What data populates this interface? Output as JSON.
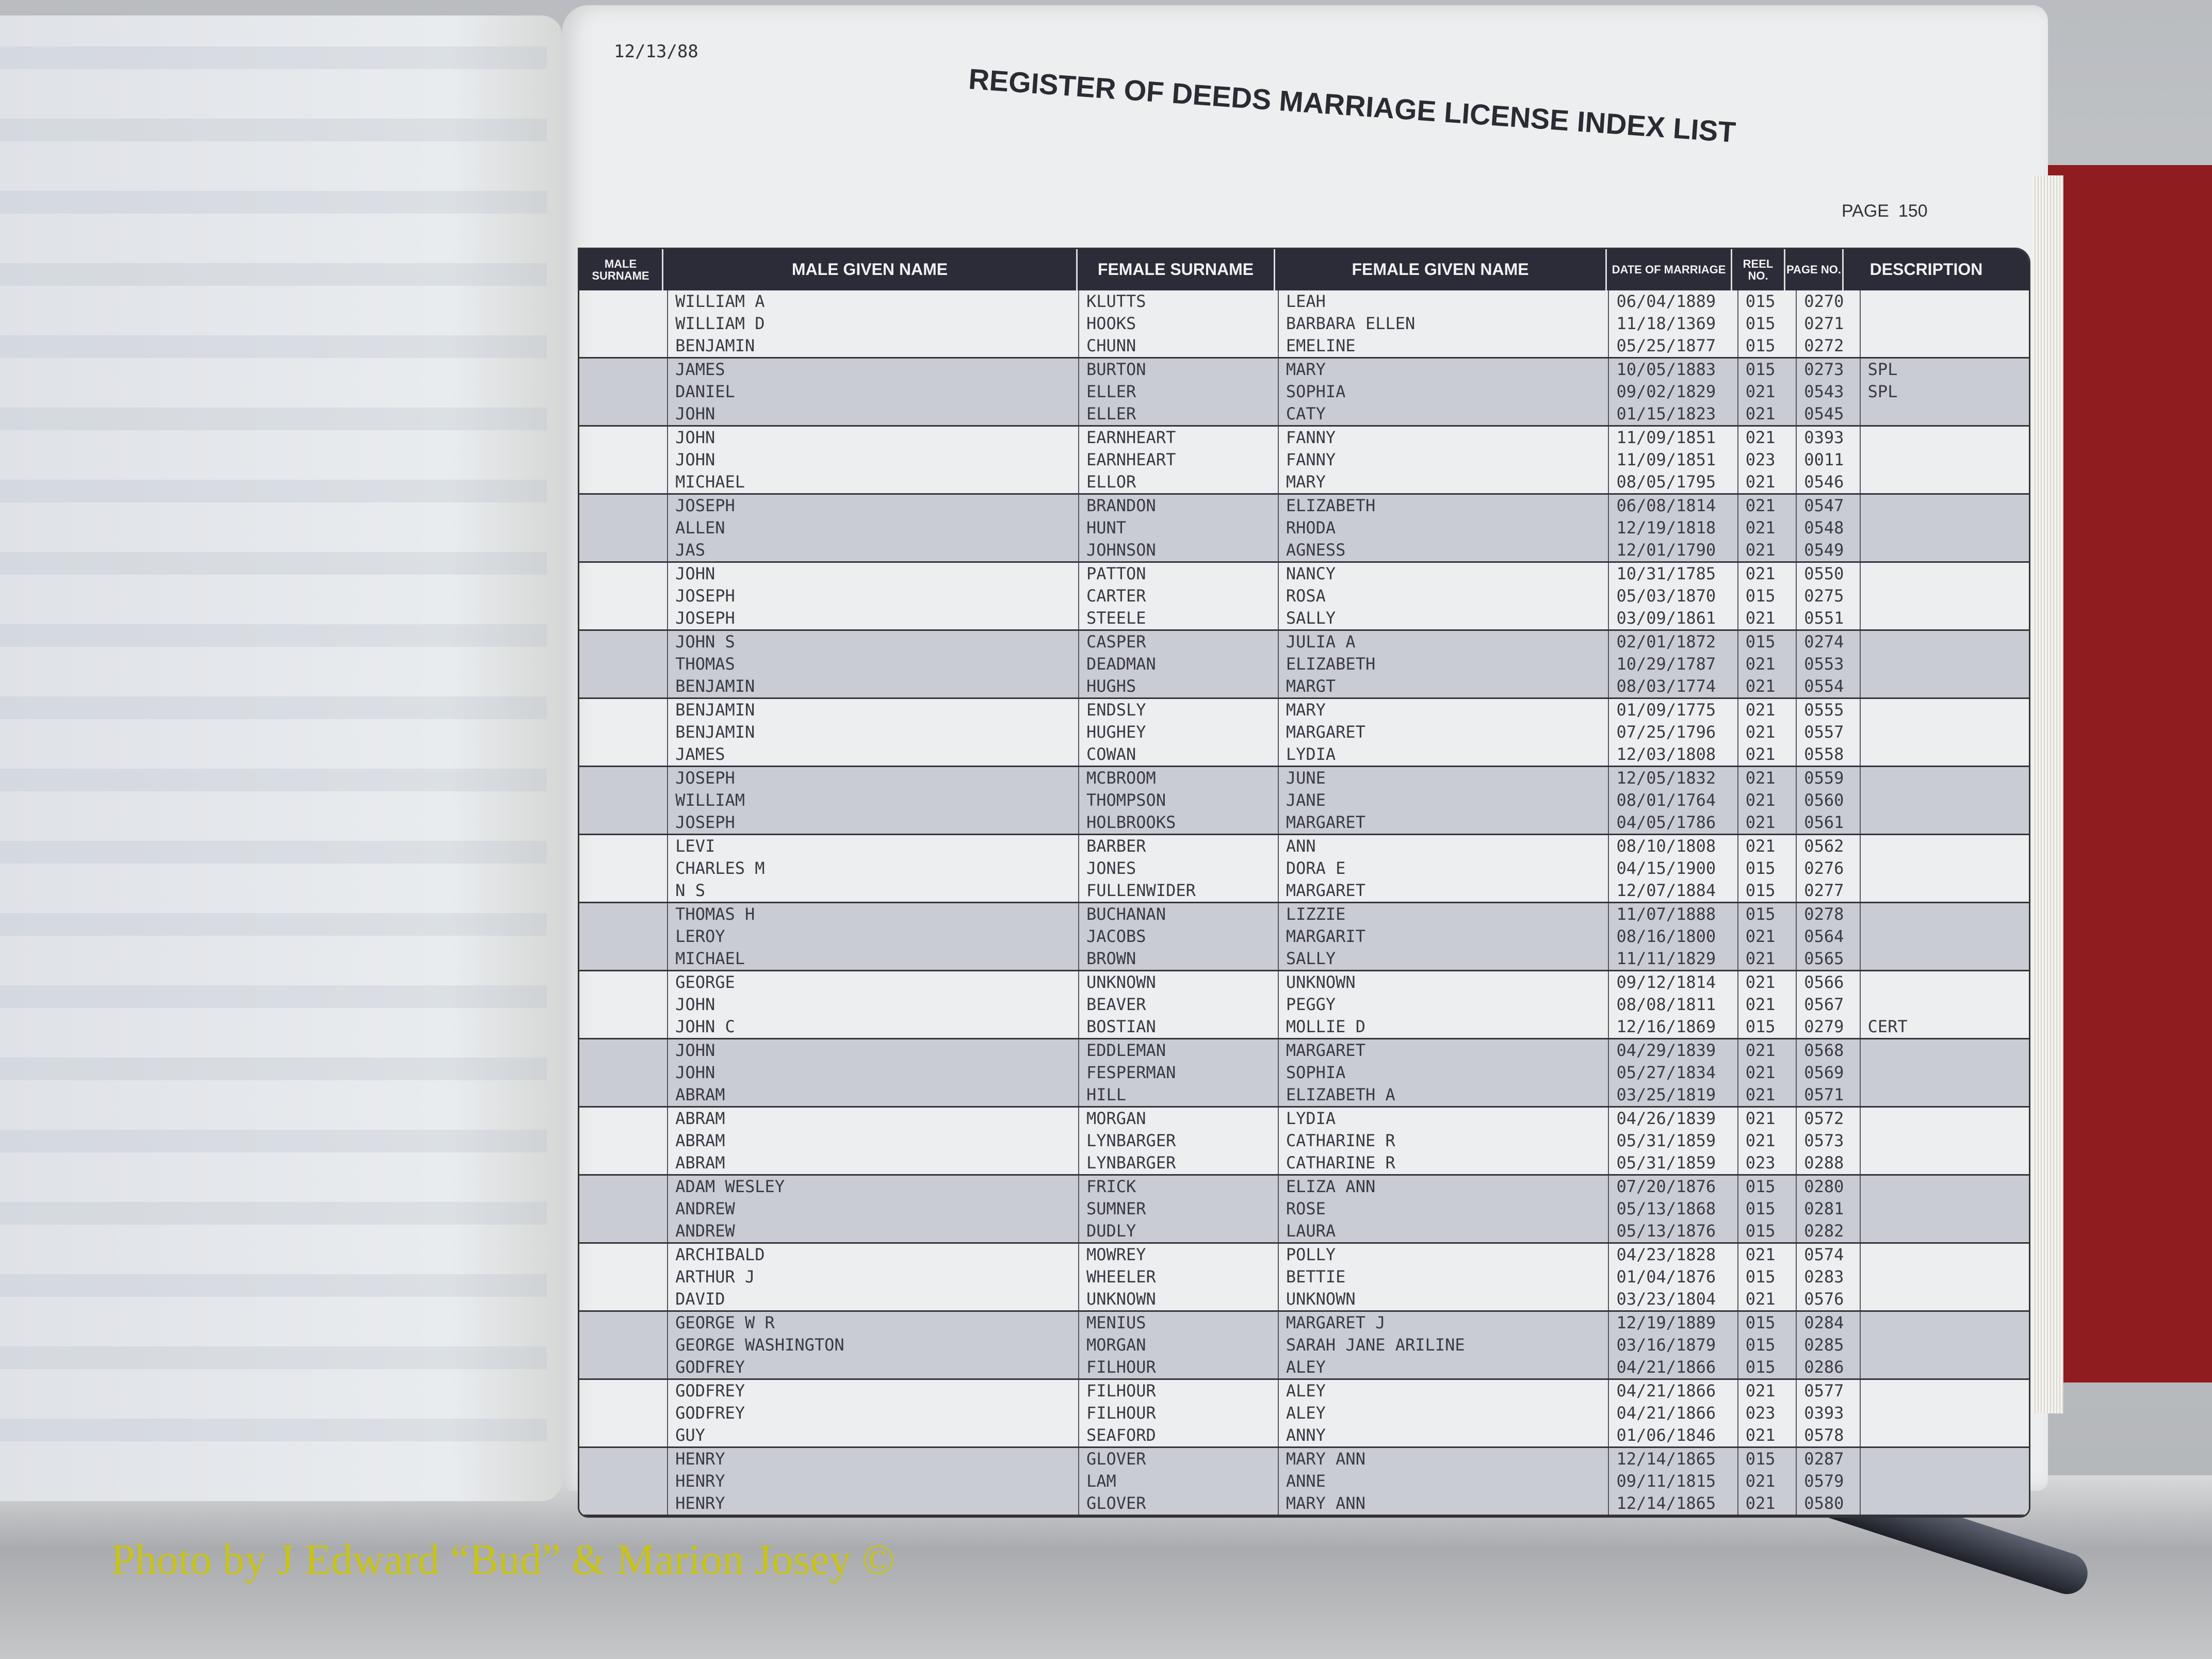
{
  "document": {
    "print_date": "12/13/88",
    "title": "REGISTER OF DEEDS MARRIAGE LICENSE INDEX LIST",
    "page_label": "PAGE",
    "page_number": "150"
  },
  "table": {
    "headers": [
      "MALE SURNAME",
      "MALE GIVEN NAME",
      "FEMALE SURNAME",
      "FEMALE GIVEN NAME",
      "DATE OF MARRIAGE",
      "REEL NO.",
      "PAGE NO.",
      "DESCRIPTION"
    ],
    "rows": [
      [
        "",
        "WILLIAM A",
        "KLUTTS",
        "LEAH",
        "06/04/1889",
        "015",
        "0270",
        ""
      ],
      [
        "",
        "WILLIAM D",
        "HOOKS",
        "BARBARA ELLEN",
        "11/18/1369",
        "015",
        "0271",
        ""
      ],
      [
        "",
        "BENJAMIN",
        "CHUNN",
        "EMELINE",
        "05/25/1877",
        "015",
        "0272",
        ""
      ],
      [
        "",
        "JAMES",
        "BURTON",
        "MARY",
        "10/05/1883",
        "015",
        "0273",
        "SPL"
      ],
      [
        "",
        "DANIEL",
        "ELLER",
        "SOPHIA",
        "09/02/1829",
        "021",
        "0543",
        "SPL"
      ],
      [
        "",
        "JOHN",
        "ELLER",
        "CATY",
        "01/15/1823",
        "021",
        "0545",
        ""
      ],
      [
        "",
        "JOHN",
        "EARNHEART",
        "FANNY",
        "11/09/1851",
        "021",
        "0393",
        ""
      ],
      [
        "",
        "JOHN",
        "EARNHEART",
        "FANNY",
        "11/09/1851",
        "023",
        "0011",
        ""
      ],
      [
        "",
        "MICHAEL",
        "ELLOR",
        "MARY",
        "08/05/1795",
        "021",
        "0546",
        ""
      ],
      [
        "",
        "JOSEPH",
        "BRANDON",
        "ELIZABETH",
        "06/08/1814",
        "021",
        "0547",
        ""
      ],
      [
        "",
        "ALLEN",
        "HUNT",
        "RHODA",
        "12/19/1818",
        "021",
        "0548",
        ""
      ],
      [
        "",
        "JAS",
        "JOHNSON",
        "AGNESS",
        "12/01/1790",
        "021",
        "0549",
        ""
      ],
      [
        "",
        "JOHN",
        "PATTON",
        "NANCY",
        "10/31/1785",
        "021",
        "0550",
        ""
      ],
      [
        "",
        "JOSEPH",
        "CARTER",
        "ROSA",
        "05/03/1870",
        "015",
        "0275",
        ""
      ],
      [
        "",
        "JOSEPH",
        "STEELE",
        "SALLY",
        "03/09/1861",
        "021",
        "0551",
        ""
      ],
      [
        "",
        "JOHN S",
        "CASPER",
        "JULIA A",
        "02/01/1872",
        "015",
        "0274",
        ""
      ],
      [
        "",
        "THOMAS",
        "DEADMAN",
        "ELIZABETH",
        "10/29/1787",
        "021",
        "0553",
        ""
      ],
      [
        "",
        "BENJAMIN",
        "HUGHS",
        "MARGT",
        "08/03/1774",
        "021",
        "0554",
        ""
      ],
      [
        "",
        "BENJAMIN",
        "ENDSLY",
        "MARY",
        "01/09/1775",
        "021",
        "0555",
        ""
      ],
      [
        "",
        "BENJAMIN",
        "HUGHEY",
        "MARGARET",
        "07/25/1796",
        "021",
        "0557",
        ""
      ],
      [
        "",
        "JAMES",
        "COWAN",
        "LYDIA",
        "12/03/1808",
        "021",
        "0558",
        ""
      ],
      [
        "",
        "JOSEPH",
        "MCBROOM",
        "JUNE",
        "12/05/1832",
        "021",
        "0559",
        ""
      ],
      [
        "",
        "WILLIAM",
        "THOMPSON",
        "JANE",
        "08/01/1764",
        "021",
        "0560",
        ""
      ],
      [
        "",
        "JOSEPH",
        "HOLBROOKS",
        "MARGARET",
        "04/05/1786",
        "021",
        "0561",
        ""
      ],
      [
        "",
        "LEVI",
        "BARBER",
        "ANN",
        "08/10/1808",
        "021",
        "0562",
        ""
      ],
      [
        "",
        "CHARLES M",
        "JONES",
        "DORA E",
        "04/15/1900",
        "015",
        "0276",
        ""
      ],
      [
        "",
        "N S",
        "FULLENWIDER",
        "MARGARET",
        "12/07/1884",
        "015",
        "0277",
        ""
      ],
      [
        "",
        "THOMAS H",
        "BUCHANAN",
        "LIZZIE",
        "11/07/1888",
        "015",
        "0278",
        ""
      ],
      [
        "",
        "LEROY",
        "JACOBS",
        "MARGARIT",
        "08/16/1800",
        "021",
        "0564",
        ""
      ],
      [
        "",
        "MICHAEL",
        "BROWN",
        "SALLY",
        "11/11/1829",
        "021",
        "0565",
        ""
      ],
      [
        "",
        "GEORGE",
        "UNKNOWN",
        "UNKNOWN",
        "09/12/1814",
        "021",
        "0566",
        ""
      ],
      [
        "",
        "JOHN",
        "BEAVER",
        "PEGGY",
        "08/08/1811",
        "021",
        "0567",
        ""
      ],
      [
        "",
        "JOHN C",
        "BOSTIAN",
        "MOLLIE D",
        "12/16/1869",
        "015",
        "0279",
        "CERT"
      ],
      [
        "",
        "JOHN",
        "EDDLEMAN",
        "MARGARET",
        "04/29/1839",
        "021",
        "0568",
        ""
      ],
      [
        "",
        "JOHN",
        "FESPERMAN",
        "SOPHIA",
        "05/27/1834",
        "021",
        "0569",
        ""
      ],
      [
        "",
        "ABRAM",
        "HILL",
        "ELIZABETH A",
        "03/25/1819",
        "021",
        "0571",
        ""
      ],
      [
        "",
        "ABRAM",
        "MORGAN",
        "LYDIA",
        "04/26/1839",
        "021",
        "0572",
        ""
      ],
      [
        "",
        "ABRAM",
        "LYNBARGER",
        "CATHARINE R",
        "05/31/1859",
        "021",
        "0573",
        ""
      ],
      [
        "",
        "ABRAM",
        "LYNBARGER",
        "CATHARINE R",
        "05/31/1859",
        "023",
        "0288",
        ""
      ],
      [
        "",
        "ADAM WESLEY",
        "FRICK",
        "ELIZA ANN",
        "07/20/1876",
        "015",
        "0280",
        ""
      ],
      [
        "",
        "ANDREW",
        "SUMNER",
        "ROSE",
        "05/13/1868",
        "015",
        "0281",
        ""
      ],
      [
        "",
        "ANDREW",
        "DUDLY",
        "LAURA",
        "05/13/1876",
        "015",
        "0282",
        ""
      ],
      [
        "",
        "ARCHIBALD",
        "MOWREY",
        "POLLY",
        "04/23/1828",
        "021",
        "0574",
        ""
      ],
      [
        "",
        "ARTHUR J",
        "WHEELER",
        "BETTIE",
        "01/04/1876",
        "015",
        "0283",
        ""
      ],
      [
        "",
        "DAVID",
        "UNKNOWN",
        "UNKNOWN",
        "03/23/1804",
        "021",
        "0576",
        ""
      ],
      [
        "",
        "GEORGE W R",
        "MENIUS",
        "MARGARET J",
        "12/19/1889",
        "015",
        "0284",
        ""
      ],
      [
        "",
        "GEORGE WASHINGTON",
        "MORGAN",
        "SARAH JANE ARILINE",
        "03/16/1879",
        "015",
        "0285",
        ""
      ],
      [
        "",
        "GODFREY",
        "FILHOUR",
        "ALEY",
        "04/21/1866",
        "015",
        "0286",
        ""
      ],
      [
        "",
        "GODFREY",
        "FILHOUR",
        "ALEY",
        "04/21/1866",
        "021",
        "0577",
        ""
      ],
      [
        "",
        "GODFREY",
        "FILHOUR",
        "ALEY",
        "04/21/1866",
        "023",
        "0393",
        ""
      ],
      [
        "",
        "GUY",
        "SEAFORD",
        "ANNY",
        "01/06/1846",
        "021",
        "0578",
        ""
      ],
      [
        "",
        "HENRY",
        "GLOVER",
        "MARY ANN",
        "12/14/1865",
        "015",
        "0287",
        ""
      ],
      [
        "",
        "HENRY",
        "LAM",
        "ANNE",
        "09/11/1815",
        "021",
        "0579",
        ""
      ],
      [
        "",
        "HENRY",
        "GLOVER",
        "MARY ANN",
        "12/14/1865",
        "021",
        "0580",
        ""
      ]
    ]
  },
  "credit": "Photo by J Edward “Bud” & Marion Josey ©",
  "colors": {
    "header_bar": "#2c2b38",
    "shaded_band": "#c9ccd2",
    "credit_text": "#c8c21a",
    "book_cover": "#8f1c1f"
  }
}
